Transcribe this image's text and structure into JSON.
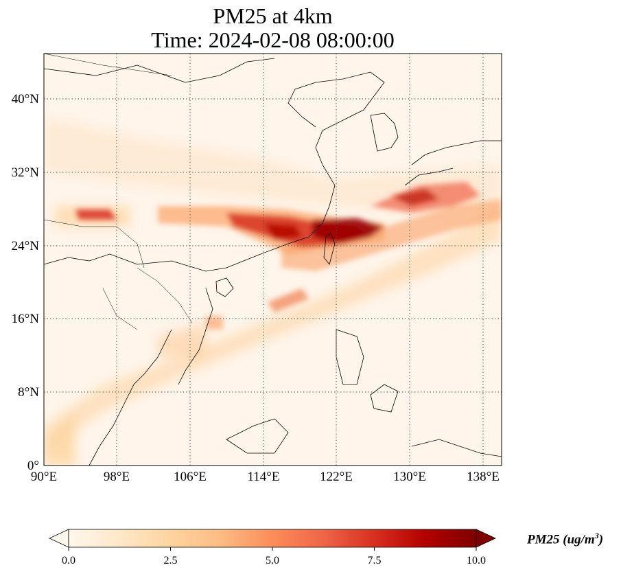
{
  "title": {
    "line1": "PM25 at 4km",
    "line2": "Time: 2024-02-08 08:00:00"
  },
  "map": {
    "lon_range": [
      90,
      140
    ],
    "lat_range": [
      0,
      45
    ],
    "lon_ticks": [
      "90°E",
      "98°E",
      "106°E",
      "114°E",
      "122°E",
      "130°E",
      "138°E"
    ],
    "lat_ticks": [
      "0°",
      "8°N",
      "16°N",
      "24°N",
      "32°N",
      "40°N"
    ],
    "gridlines": "dotted",
    "background_color": "#fff5eb"
  },
  "colorbar": {
    "label_main": "PM25 (ug/m",
    "label_exp": "3",
    "label_close": ")",
    "ticks": [
      "0.0",
      "2.5",
      "5.0",
      "7.5",
      "10.0"
    ],
    "min": 0,
    "max": 10,
    "colormap": "OrRd",
    "colors": [
      "#fff7ec",
      "#fee8c8",
      "#fdd49e",
      "#fdbb84",
      "#fc8d59",
      "#ef6548",
      "#d7301f",
      "#b30000",
      "#7f0000"
    ],
    "extend": "both"
  }
}
